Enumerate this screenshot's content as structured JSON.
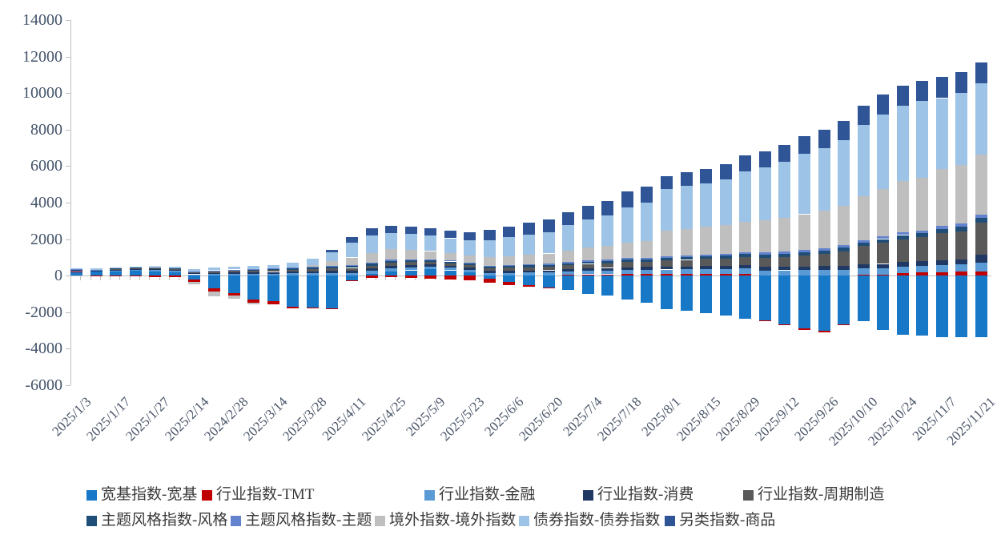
{
  "chart_data": {
    "type": "bar",
    "stacked": true,
    "title": "",
    "xlabel": "",
    "ylabel": "",
    "grid": false,
    "legend_position": "bottom-two-rows",
    "ylim": [
      -6000,
      14000
    ],
    "y_ticks": [
      "14000",
      "12000",
      "10000",
      "8000",
      "6000",
      "4000",
      "2000",
      "0",
      "-2000",
      "-4000",
      "-6000"
    ],
    "axis_color": "#BFBFBF",
    "y_label_color": "#44546A",
    "x_label_color": "#4A5568",
    "bar_count": 47,
    "x_labels_every_other_bar": true,
    "x_tick_labels": [
      "2025/1/3",
      "2025/1/17",
      "2025/1/27",
      "2025/2/14",
      "2024/2/28",
      "2025/3/14",
      "2025/3/28",
      "2025/4/11",
      "2025/4/25",
      "2025/5/9",
      "2025/5/23",
      "2025/6/6",
      "2025/6/20",
      "2025/7/4",
      "2025/7/18",
      "2025/8/1",
      "2025/8/15",
      "2025/8/29",
      "2025/9/12",
      "2025/9/26",
      "2025/10/10",
      "2025/10/24",
      "2025/11/7",
      "2025/11/21"
    ],
    "series": [
      {
        "name": "宽基指数-宽基",
        "color": "#1878C8",
        "values": [
          180,
          220,
          230,
          260,
          250,
          200,
          -200,
          -700,
          -950,
          -1300,
          -1400,
          -1700,
          -1750,
          -1800,
          -250,
          100,
          250,
          300,
          350,
          300,
          200,
          -150,
          -350,
          -500,
          -650,
          -800,
          -1000,
          -1100,
          -1300,
          -1500,
          -1850,
          -1900,
          -2050,
          -2200,
          -2350,
          -2450,
          -2650,
          -2880,
          -3000,
          -2650,
          -2500,
          -2950,
          -3250,
          -3300,
          -3350,
          -3350,
          -3350
        ]
      },
      {
        "name": "行业指数-TMT",
        "color": "#C00000",
        "values": [
          50,
          -20,
          -40,
          -50,
          -70,
          -90,
          -150,
          -150,
          -150,
          -180,
          -150,
          -100,
          -50,
          -50,
          -50,
          -100,
          -80,
          -100,
          -150,
          -200,
          -250,
          -250,
          -150,
          -100,
          -50,
          50,
          80,
          80,
          100,
          100,
          100,
          110,
          110,
          110,
          120,
          -50,
          -50,
          -70,
          -100,
          -50,
          50,
          60,
          150,
          180,
          200,
          220,
          250
        ]
      },
      {
        "name": "行业指数-金融",
        "color": "#5B9BD5",
        "values": [
          40,
          40,
          60,
          60,
          70,
          70,
          80,
          90,
          100,
          110,
          120,
          130,
          140,
          150,
          160,
          170,
          170,
          160,
          150,
          140,
          140,
          150,
          160,
          170,
          180,
          190,
          200,
          210,
          220,
          230,
          240,
          250,
          260,
          270,
          280,
          290,
          300,
          310,
          320,
          330,
          340,
          350,
          360,
          370,
          380,
          400,
          480
        ]
      },
      {
        "name": "行业指数-消费",
        "color": "#1F3864",
        "values": [
          60,
          40,
          50,
          60,
          70,
          60,
          60,
          70,
          80,
          80,
          90,
          90,
          100,
          110,
          120,
          130,
          130,
          120,
          110,
          100,
          100,
          110,
          110,
          120,
          120,
          130,
          140,
          140,
          150,
          150,
          160,
          160,
          170,
          170,
          180,
          190,
          190,
          200,
          210,
          220,
          230,
          240,
          250,
          250,
          260,
          280,
          430
        ]
      },
      {
        "name": "行业指数-周期制造",
        "color": "#595959",
        "values": [
          20,
          0,
          30,
          30,
          40,
          40,
          50,
          70,
          80,
          90,
          100,
          110,
          120,
          130,
          150,
          160,
          170,
          170,
          160,
          150,
          150,
          160,
          170,
          180,
          190,
          210,
          230,
          250,
          280,
          300,
          330,
          350,
          380,
          400,
          450,
          500,
          550,
          600,
          650,
          800,
          1000,
          1150,
          1250,
          1300,
          1500,
          1550,
          1750
        ]
      },
      {
        "name": "主题风格指数-风格",
        "color": "#1F4E79",
        "values": [
          20,
          20,
          30,
          40,
          40,
          40,
          40,
          50,
          50,
          60,
          60,
          70,
          80,
          90,
          90,
          100,
          100,
          100,
          90,
          90,
          90,
          90,
          100,
          100,
          110,
          110,
          120,
          120,
          130,
          130,
          140,
          140,
          150,
          150,
          160,
          170,
          170,
          180,
          190,
          200,
          200,
          210,
          220,
          220,
          230,
          240,
          250
        ]
      },
      {
        "name": "主题风格指数-主题",
        "color": "#6383CE",
        "values": [
          10,
          10,
          0,
          0,
          0,
          0,
          20,
          20,
          30,
          30,
          30,
          40,
          50,
          60,
          60,
          60,
          70,
          60,
          50,
          50,
          50,
          50,
          50,
          60,
          60,
          70,
          70,
          80,
          80,
          90,
          90,
          100,
          100,
          110,
          110,
          120,
          120,
          130,
          130,
          140,
          140,
          150,
          150,
          160,
          160,
          170,
          180
        ]
      },
      {
        "name": "境外指数-境外指数",
        "color": "#BFBFBF",
        "values": [
          0,
          0,
          0,
          0,
          0,
          0,
          -100,
          -300,
          -150,
          -70,
          0,
          0,
          80,
          260,
          420,
          530,
          560,
          500,
          440,
          400,
          380,
          450,
          480,
          520,
          560,
          630,
          700,
          750,
          840,
          900,
          1400,
          1450,
          1500,
          1550,
          1650,
          1750,
          1850,
          1950,
          2050,
          2150,
          2400,
          2600,
          2800,
          2900,
          3100,
          3200,
          3300
        ]
      },
      {
        "name": "债券指数-债券指数",
        "color": "#9DC3E6",
        "values": [
          20,
          60,
          50,
          50,
          50,
          70,
          100,
          150,
          160,
          180,
          200,
          260,
          380,
          500,
          800,
          950,
          900,
          890,
          850,
          820,
          840,
          940,
          1030,
          1100,
          1180,
          1390,
          1560,
          1670,
          1950,
          2100,
          2300,
          2350,
          2400,
          2500,
          2750,
          2900,
          3050,
          3300,
          3450,
          3600,
          3900,
          4050,
          4150,
          4200,
          3900,
          3950,
          3900
        ]
      },
      {
        "name": "另类指数-商品",
        "color": "#2F5597",
        "values": [
          0,
          0,
          0,
          0,
          0,
          0,
          0,
          0,
          0,
          0,
          0,
          0,
          0,
          100,
          300,
          400,
          400,
          400,
          400,
          400,
          450,
          550,
          600,
          650,
          700,
          720,
          750,
          800,
          850,
          900,
          700,
          750,
          800,
          850,
          900,
          900,
          950,
          980,
          1000,
          1030,
          1050,
          1100,
          1100,
          1100,
          1150,
          1150,
          1150
        ]
      }
    ]
  }
}
